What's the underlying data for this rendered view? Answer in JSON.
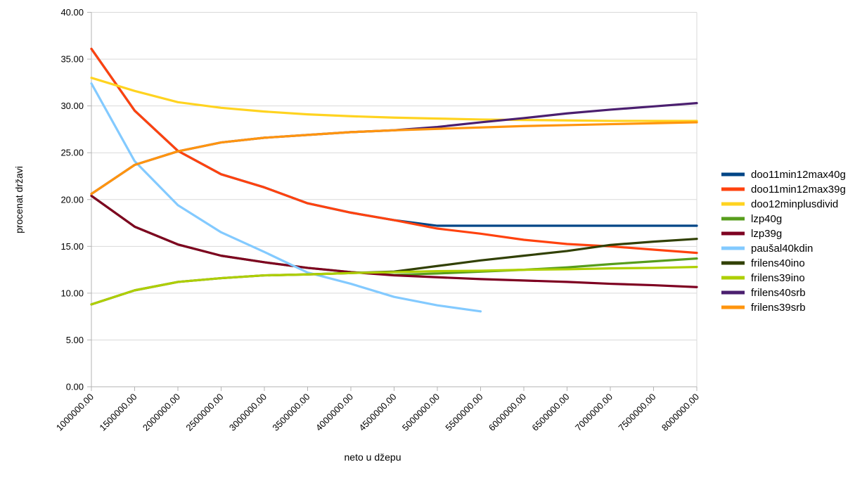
{
  "chart": {
    "y_axis_tick_labels": [
      "0.00",
      "5.00",
      "10.00",
      "15.00",
      "20.00",
      "25.00",
      "30.00",
      "35.00",
      "40.00"
    ],
    "x_axis_tick_labels": [
      "1000000.00",
      "1500000.00",
      "2000000.00",
      "2500000.00",
      "3000000.00",
      "3500000.00",
      "4000000.00",
      "4500000.00",
      "5000000.00",
      "5500000.00",
      "6000000.00",
      "6500000.00",
      "7000000.00",
      "7500000.00",
      "8000000.00"
    ]
  },
  "chart_data": {
    "type": "line",
    "title": "",
    "xlabel": "neto u džepu",
    "ylabel": "procenat državi",
    "x": [
      1000000,
      1500000,
      2000000,
      2500000,
      3000000,
      3500000,
      4000000,
      4500000,
      5000000,
      5500000,
      6000000,
      6500000,
      7000000,
      7500000,
      8000000
    ],
    "xlim": [
      1000000,
      8000000
    ],
    "ylim": [
      0,
      40
    ],
    "y_tick_step": 5,
    "grid": true,
    "legend_position": "right",
    "series": [
      {
        "name": "doo11min12max40g",
        "color": "#004586",
        "values": [
          36.1,
          29.5,
          25.2,
          22.7,
          21.3,
          19.6,
          18.6,
          17.8,
          17.2,
          17.2,
          17.2,
          17.2,
          17.2,
          17.2,
          17.2
        ]
      },
      {
        "name": "doo11min12max39g",
        "color": "#ff420e",
        "values": [
          36.1,
          29.5,
          25.2,
          22.7,
          21.3,
          19.6,
          18.6,
          17.8,
          16.9,
          16.35,
          15.7,
          15.25,
          15.0,
          14.65,
          14.3
        ]
      },
      {
        "name": "doo12minplusdivid",
        "color": "#ffd320",
        "values": [
          33.0,
          31.6,
          30.4,
          29.8,
          29.4,
          29.1,
          28.9,
          28.75,
          28.65,
          28.55,
          28.5,
          28.45,
          28.4,
          28.4,
          28.4
        ]
      },
      {
        "name": "lzp40g",
        "color": "#579d1c",
        "values": [
          20.4,
          17.1,
          15.2,
          14.0,
          13.3,
          12.7,
          12.25,
          11.95,
          12.1,
          12.3,
          12.5,
          12.75,
          13.1,
          13.4,
          13.7
        ]
      },
      {
        "name": "lzp39g",
        "color": "#7e0021",
        "values": [
          20.4,
          17.1,
          15.2,
          14.0,
          13.3,
          12.7,
          12.25,
          11.9,
          11.7,
          11.5,
          11.35,
          11.2,
          11.0,
          10.85,
          10.65
        ]
      },
      {
        "name": "paušal40kdin",
        "color": "#83caff",
        "values": [
          32.4,
          24.1,
          19.4,
          16.5,
          14.4,
          12.2,
          11.0,
          9.6,
          8.7,
          8.05
        ]
      },
      {
        "name": "frilens40ino",
        "color": "#314004",
        "values": [
          8.8,
          10.3,
          11.2,
          11.6,
          11.9,
          12.0,
          12.15,
          12.3,
          12.9,
          13.5,
          14.0,
          14.5,
          15.15,
          15.5,
          15.8
        ]
      },
      {
        "name": "frilens39ino",
        "color": "#aecf00",
        "values": [
          8.8,
          10.3,
          11.2,
          11.6,
          11.9,
          12.0,
          12.15,
          12.25,
          12.35,
          12.4,
          12.5,
          12.55,
          12.65,
          12.7,
          12.8
        ]
      },
      {
        "name": "frilens40srb",
        "color": "#4b1f6f",
        "values": [
          20.6,
          23.7,
          25.15,
          26.1,
          26.6,
          26.9,
          27.2,
          27.4,
          27.75,
          28.25,
          28.7,
          29.2,
          29.6,
          29.95,
          30.3
        ]
      },
      {
        "name": "frilens39srb",
        "color": "#ff950e",
        "values": [
          20.6,
          23.7,
          25.15,
          26.1,
          26.6,
          26.9,
          27.2,
          27.4,
          27.55,
          27.7,
          27.85,
          27.95,
          28.05,
          28.15,
          28.25
        ]
      }
    ]
  },
  "colors": {
    "grid": "#d9d9d9",
    "axis": "#b3b3b3",
    "text": "#000000",
    "background": "#ffffff"
  }
}
